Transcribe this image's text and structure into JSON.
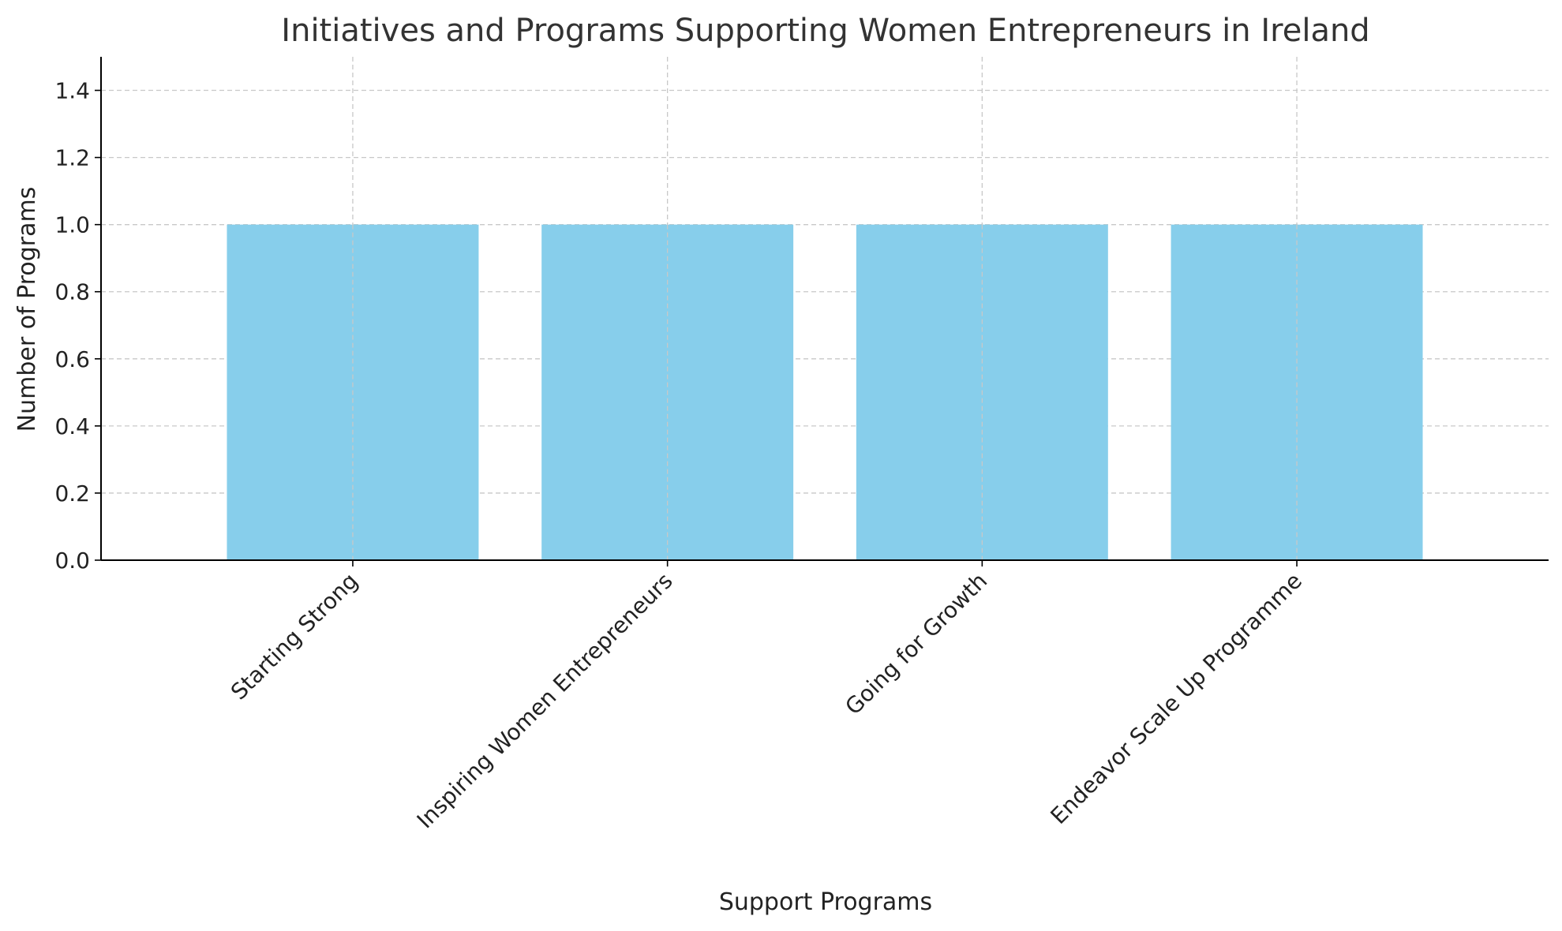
{
  "chart_data": {
    "type": "bar",
    "title": "Initiatives and Programs Supporting Women Entrepreneurs in Ireland",
    "xlabel": "Support Programs",
    "ylabel": "Number of Programs",
    "categories": [
      "Starting Strong",
      "Inspiring Women Entrepreneurs",
      "Going for Growth",
      "Endeavor Scale Up Programme"
    ],
    "values": [
      1,
      1,
      1,
      1
    ],
    "ylim": [
      0,
      1.5
    ],
    "yticks": [
      "0.0",
      "0.2",
      "0.4",
      "0.6",
      "0.8",
      "1.0",
      "1.2",
      "1.4"
    ],
    "grid": true,
    "bar_color": "#87CEEB"
  }
}
